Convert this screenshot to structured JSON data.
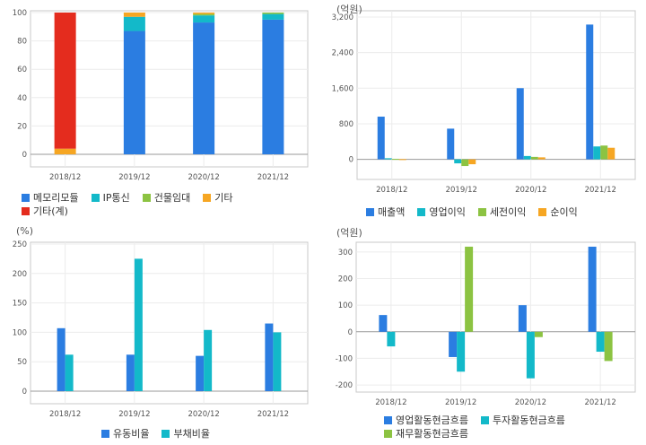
{
  "chart_data": [
    {
      "id": "segments",
      "type": "bar",
      "stacked": true,
      "unit": "",
      "categories": [
        "2018/12",
        "2019/12",
        "2020/12",
        "2021/12"
      ],
      "ylim": [
        0,
        100
      ],
      "yticks": [
        0,
        20,
        40,
        60,
        80,
        100
      ],
      "series": [
        {
          "name": "메모리모듈",
          "color": "#2b7de1",
          "values": [
            0,
            87,
            93,
            95
          ]
        },
        {
          "name": "IP통신",
          "color": "#13b9c9",
          "values": [
            0,
            10,
            5,
            4
          ]
        },
        {
          "name": "건물임대",
          "color": "#8cc342",
          "values": [
            0,
            0,
            1,
            1
          ]
        },
        {
          "name": "기타",
          "color": "#f6a623",
          "values": [
            4,
            3,
            1,
            0
          ]
        },
        {
          "name": "기타(계)",
          "color": "#e42c1e",
          "values": [
            96,
            0,
            0,
            0
          ]
        }
      ],
      "grid": true
    },
    {
      "id": "income",
      "type": "bar",
      "unit": "(억원)",
      "categories": [
        "2018/12",
        "2019/12",
        "2020/12",
        "2021/12"
      ],
      "ylim": [
        -250,
        3300
      ],
      "yticks": [
        0,
        800,
        1600,
        2400,
        3200
      ],
      "series": [
        {
          "name": "매출액",
          "color": "#2b7de1",
          "values": [
            960,
            690,
            1600,
            3030
          ]
        },
        {
          "name": "영업이익",
          "color": "#13b9c9",
          "values": [
            25,
            -90,
            75,
            290
          ]
        },
        {
          "name": "세전이익",
          "color": "#8cc342",
          "values": [
            10,
            -150,
            55,
            310
          ]
        },
        {
          "name": "순이익",
          "color": "#f6a623",
          "values": [
            5,
            -110,
            45,
            260
          ]
        }
      ],
      "grid": true
    },
    {
      "id": "ratios",
      "type": "bar",
      "unit": "(%)",
      "categories": [
        "2018/12",
        "2019/12",
        "2020/12",
        "2021/12"
      ],
      "ylim": [
        0,
        250
      ],
      "yticks": [
        0,
        50,
        100,
        150,
        200,
        250
      ],
      "series": [
        {
          "name": "유동비율",
          "color": "#2b7de1",
          "values": [
            107,
            62,
            60,
            115
          ]
        },
        {
          "name": "부채비율",
          "color": "#13b9c9",
          "values": [
            62,
            225,
            104,
            100
          ]
        }
      ],
      "grid": true
    },
    {
      "id": "cashflow",
      "type": "bar",
      "unit": "(억원)",
      "categories": [
        "2018/12",
        "2019/12",
        "2020/12",
        "2021/12"
      ],
      "ylim": [
        -220,
        330
      ],
      "yticks": [
        -200,
        -100,
        0,
        100,
        200,
        300
      ],
      "series": [
        {
          "name": "영업활동현금흐름",
          "color": "#2b7de1",
          "values": [
            63,
            -95,
            100,
            320
          ]
        },
        {
          "name": "투자활동현금흐름",
          "color": "#13b9c9",
          "values": [
            -55,
            -150,
            -175,
            -75
          ]
        },
        {
          "name": "재무활동현금흐름",
          "color": "#8cc342",
          "values": [
            0,
            320,
            -20,
            -110
          ]
        }
      ],
      "grid": true
    }
  ]
}
